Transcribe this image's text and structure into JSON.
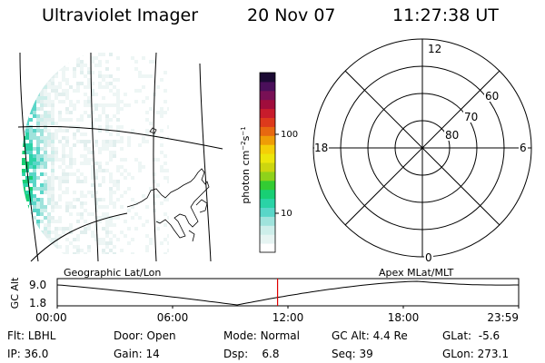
{
  "header": {
    "title": "Ultraviolet Imager",
    "date": "20 Nov 07",
    "time": "11:27:38 UT"
  },
  "colorbar": {
    "label": "photon cm-2s-1",
    "ticks": [
      "100",
      "10"
    ],
    "scale": "log",
    "colors": [
      "#ffffff",
      "#e6f4f2",
      "#cdeeea",
      "#9fe3dc",
      "#59d6c8",
      "#2ad3a6",
      "#18cf74",
      "#33cc33",
      "#8fd21a",
      "#ccd60f",
      "#ece60b",
      "#f4cf07",
      "#ef9d06",
      "#e76810",
      "#dd3a1c",
      "#c81c2c",
      "#a00d3c",
      "#781055",
      "#4a0f5a",
      "#1b0a33"
    ]
  },
  "polar": {
    "mlt_labels": {
      "top": "12",
      "right": "6",
      "bottom": "0",
      "left": "18"
    },
    "lat_labels": [
      "60",
      "70",
      "80"
    ]
  },
  "altitude_plot": {
    "ylabel": "GC Alt",
    "yticks": [
      "9.0",
      "1.8"
    ],
    "left_title": "Geographic Lat/Lon",
    "right_title": "Apex MLat/MLT",
    "xticks": [
      "00:00",
      "06:00",
      "12:00",
      "18:00",
      "23:59"
    ],
    "current_time_marker": "11:27:38",
    "marker_color": "#e00000"
  },
  "status": {
    "row1": [
      {
        "label": "Flt:",
        "value": "LBHL"
      },
      {
        "label": "Door:",
        "value": "Open"
      },
      {
        "label": "Mode:",
        "value": "Normal"
      },
      {
        "label": "GC Alt:",
        "value": "4.4 Re"
      },
      {
        "label": "GLat:",
        "value": "-5.6"
      }
    ],
    "row2": [
      {
        "label": "IP:",
        "value": "36.0"
      },
      {
        "label": "Gain:",
        "value": "14"
      },
      {
        "label": "Dsp:",
        "value": "6.8"
      },
      {
        "label": "Seq:",
        "value": "39"
      },
      {
        "label": "GLon:",
        "value": "273.1"
      }
    ]
  }
}
